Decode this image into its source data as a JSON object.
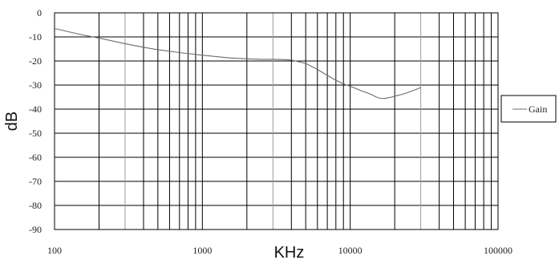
{
  "chart_data": {
    "type": "line",
    "xscale": "log",
    "xlim": [
      100,
      100000
    ],
    "ylim": [
      -90,
      0
    ],
    "xlabel": "KHz",
    "ylabel": "dB",
    "x_tick_labels": [
      "100",
      "1000",
      "10000",
      "100000"
    ],
    "y_tick_labels": [
      "0",
      "-10",
      "-20",
      "-30",
      "-40",
      "-50",
      "-60",
      "-70",
      "-80",
      "-90"
    ],
    "grid": true,
    "legend": {
      "placement": "right",
      "entries": [
        "Gain"
      ]
    },
    "series": [
      {
        "name": "Gain",
        "color": "#6b6b6b",
        "x": [
          100,
          150,
          200,
          300,
          400,
          500,
          700,
          1000,
          1500,
          2000,
          2500,
          3000,
          3500,
          4000,
          5000,
          6000,
          7000,
          8000,
          9000,
          10000,
          11000,
          12000,
          13000,
          14000,
          15000,
          16000,
          17000,
          18000,
          19000,
          20000,
          22000,
          24000,
          26000,
          28000,
          30000
        ],
        "y": [
          -6.5,
          -9,
          -10.5,
          -12.8,
          -14.3,
          -15.3,
          -16.5,
          -17.6,
          -18.7,
          -19.1,
          -19.3,
          -19.3,
          -19.4,
          -19.6,
          -21,
          -23.5,
          -26,
          -28,
          -29.5,
          -30.5,
          -31.5,
          -32.5,
          -33.2,
          -34,
          -35,
          -35.5,
          -35.6,
          -35.3,
          -35,
          -34.6,
          -34,
          -33.3,
          -32.5,
          -31.8,
          -31
        ]
      }
    ]
  }
}
